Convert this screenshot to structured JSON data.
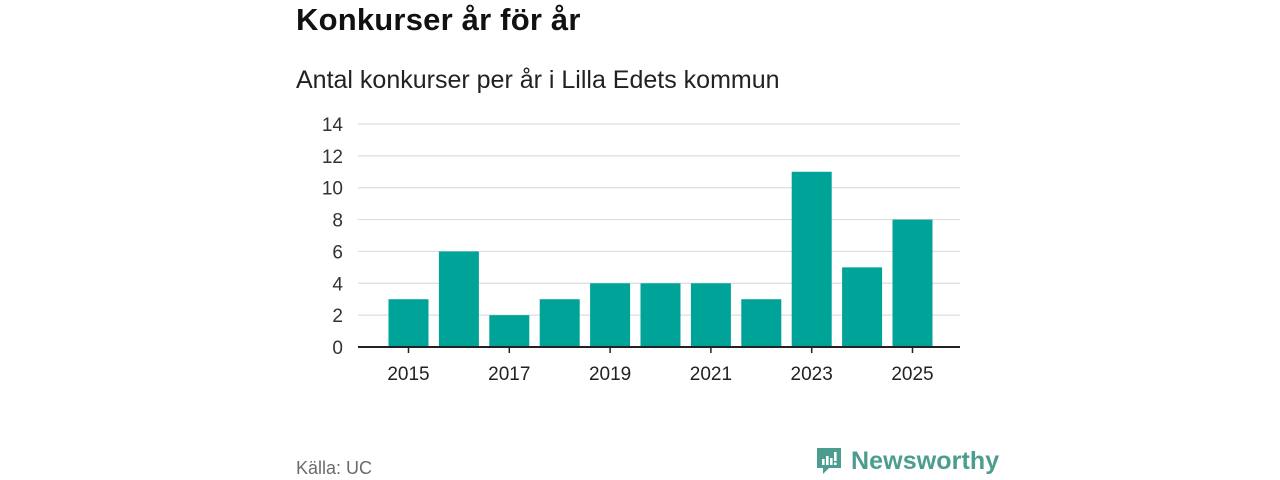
{
  "header": {
    "title": "Konkurser år för år",
    "subtitle": "Antal konkurser per år i Lilla Edets kommun"
  },
  "footer": {
    "source": "Källa: UC",
    "brand": "Newsworthy"
  },
  "colors": {
    "bar": "#00a398",
    "brand": "#4c9d8f",
    "grid": "#dddddd",
    "axis": "#222222"
  },
  "chart_data": {
    "type": "bar",
    "categories": [
      "2015",
      "2016",
      "2017",
      "2018",
      "2019",
      "2020",
      "2021",
      "2022",
      "2023",
      "2024",
      "2025"
    ],
    "values": [
      3,
      6,
      2,
      3,
      4,
      4,
      4,
      3,
      11,
      5,
      8
    ],
    "x_tick_labels": [
      "2015",
      "2017",
      "2019",
      "2021",
      "2023",
      "2025"
    ],
    "y_ticks": [
      0,
      2,
      4,
      6,
      8,
      10,
      12,
      14
    ],
    "ylim": [
      0,
      14
    ],
    "xlabel": "",
    "ylabel": "",
    "grid": true,
    "legend": false
  }
}
